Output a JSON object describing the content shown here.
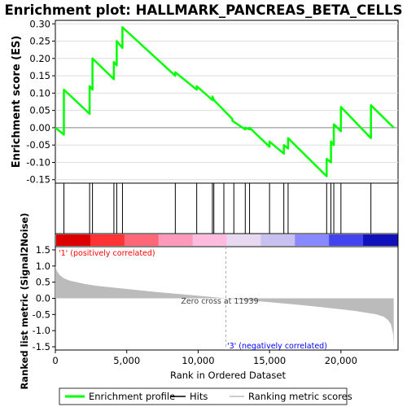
{
  "chart_data": {
    "type": "line",
    "title": "Enrichment plot: HALLMARK_PANCREAS_BETA_CELLS",
    "enrichment": {
      "ylabel": "Enrichment score (ES)",
      "ylim": [
        -0.16,
        0.31
      ],
      "yticks": [
        0.3,
        0.25,
        0.2,
        0.15,
        0.1,
        0.05,
        0.0,
        -0.05,
        -0.1,
        -0.15
      ],
      "ytick_labels": [
        "0.30",
        "0.25",
        "0.20",
        "0.15",
        "0.10",
        "0.05",
        "0.00",
        "-0.05",
        "-0.10",
        "-0.15"
      ],
      "color": "#00ff00",
      "x": [
        0,
        600,
        600,
        2400,
        2400,
        2600,
        2600,
        4100,
        4100,
        4300,
        4300,
        4700,
        4700,
        8400,
        8400,
        9900,
        9900,
        11000,
        11000,
        11100,
        11100,
        12400,
        12400,
        13300,
        13300,
        13600,
        13600,
        15000,
        15000,
        16000,
        16000,
        16300,
        16300,
        19000,
        19000,
        19300,
        19300,
        19500,
        19500,
        20000,
        20000,
        22100,
        22100,
        23700
      ],
      "y": [
        0.0,
        -0.02,
        0.11,
        0.04,
        0.12,
        0.11,
        0.2,
        0.14,
        0.19,
        0.18,
        0.25,
        0.23,
        0.29,
        0.15,
        0.16,
        0.11,
        0.12,
        0.08,
        0.09,
        0.08,
        0.08,
        0.025,
        0.02,
        -0.005,
        0.0,
        -0.005,
        0.0,
        -0.055,
        -0.04,
        -0.075,
        -0.05,
        -0.06,
        -0.03,
        -0.14,
        -0.09,
        -0.1,
        -0.04,
        -0.05,
        0.01,
        -0.01,
        0.06,
        -0.03,
        0.065,
        0.0
      ]
    },
    "hits": [
      600,
      2400,
      2600,
      4100,
      4300,
      4700,
      8400,
      9900,
      11000,
      11100,
      11800,
      12500,
      13300,
      13600,
      15000,
      16000,
      16300,
      19000,
      19300,
      19500,
      20000,
      22100
    ],
    "color_bar": [
      "#dd0000",
      "#ff3333",
      "#ff6677",
      "#ff99bb",
      "#ffbbdd",
      "#e8d8f0",
      "#c8c0f0",
      "#8888ff",
      "#4444ee",
      "#1111bb"
    ],
    "ranked_metric": {
      "ylabel": "Ranked list metric (Signal2Noise)",
      "xlabel": "Rank in Ordered Dataset",
      "xlim": [
        0,
        24000
      ],
      "ylim": [
        -1.6,
        1.6
      ],
      "yticks": [
        1.5,
        1.0,
        0.5,
        0.0,
        -0.5,
        -1.0,
        -1.5
      ],
      "ytick_labels": [
        "1.5",
        "1.0",
        "0.5",
        "0.0",
        "-0.5",
        "-1.0",
        "-1.5"
      ],
      "xticks": [
        0,
        5000,
        10000,
        15000,
        20000
      ],
      "xtick_labels": [
        "0",
        "5,000",
        "10,000",
        "15,000",
        "20,000"
      ],
      "curve_x": [
        0,
        100,
        300,
        600,
        1000,
        2000,
        3000,
        5000,
        7000,
        9000,
        10500,
        11939,
        13000,
        15000,
        17000,
        19000,
        21000,
        22500,
        23000,
        23300,
        23500,
        23650,
        23700
      ],
      "curve_y": [
        1.0,
        0.85,
        0.72,
        0.62,
        0.55,
        0.45,
        0.38,
        0.29,
        0.2,
        0.12,
        0.06,
        0.0,
        -0.04,
        -0.12,
        -0.2,
        -0.29,
        -0.39,
        -0.5,
        -0.57,
        -0.67,
        -0.8,
        -1.1,
        -1.5
      ],
      "color": "#bbbbbb",
      "zero_cross_x": 11939,
      "zero_cross_label": "Zero cross at 11939",
      "pos_label": "'1' (positively correlated)",
      "pos_color": "#ff0000",
      "neg_label": "'3' (negatively correlated)",
      "neg_color": "#0000ff"
    },
    "legend": [
      {
        "label": "Enrichment profile",
        "color": "#00ff00"
      },
      {
        "label": "Hits",
        "color": "#000000"
      },
      {
        "label": "Ranking metric scores",
        "color": "#bbbbbb"
      }
    ]
  }
}
